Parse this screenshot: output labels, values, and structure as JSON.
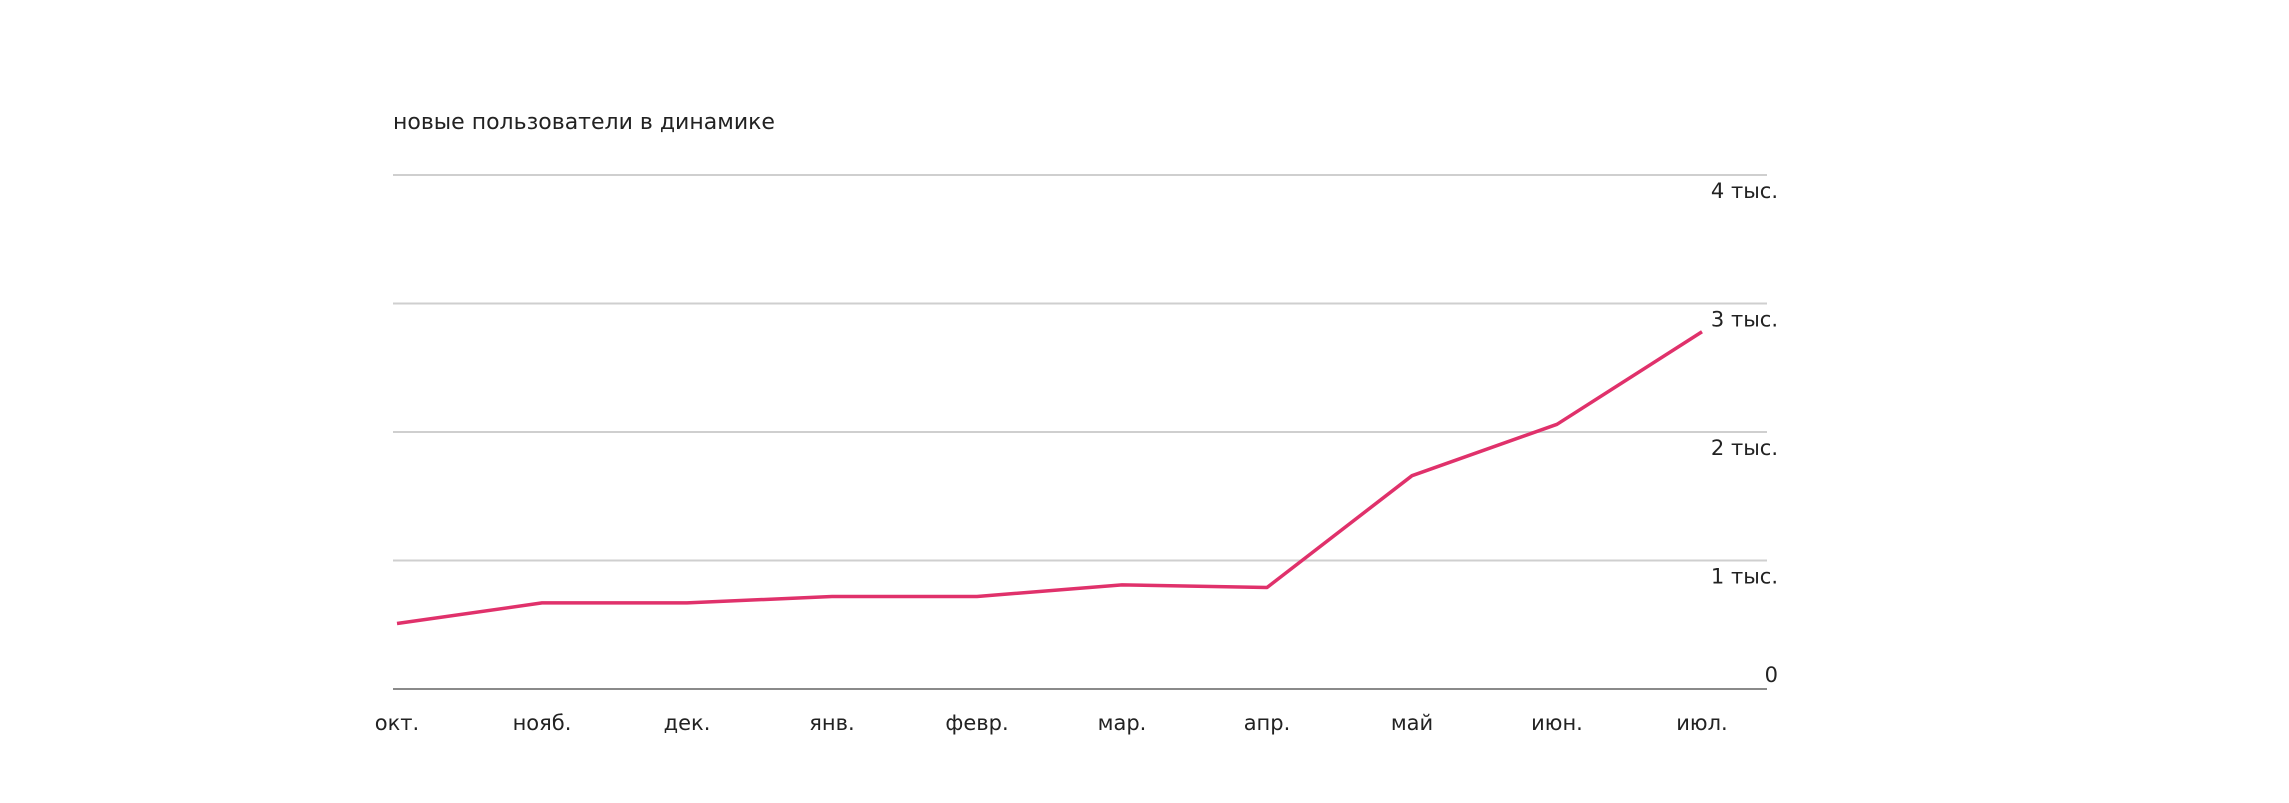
{
  "chart_data": {
    "type": "line",
    "title": "новые пользователи в динамике",
    "categories": [
      "окт.",
      "нояб.",
      "дек.",
      "янв.",
      "февр.",
      "мар.",
      "апр.",
      "май",
      "июн.",
      "июл."
    ],
    "values": [
      510,
      670,
      670,
      720,
      720,
      810,
      790,
      1660,
      2060,
      2780
    ],
    "color": "#e0316b",
    "ylim": [
      0,
      4000
    ],
    "yticks": [
      0,
      {
        "value": 1000,
        "label": "1 тыс."
      },
      {
        "value": 2000,
        "label": "2 тыс."
      },
      {
        "value": 3000,
        "label": "3 тыс."
      },
      {
        "value": 4000,
        "label": "4 тыс."
      }
    ],
    "grid": true
  }
}
